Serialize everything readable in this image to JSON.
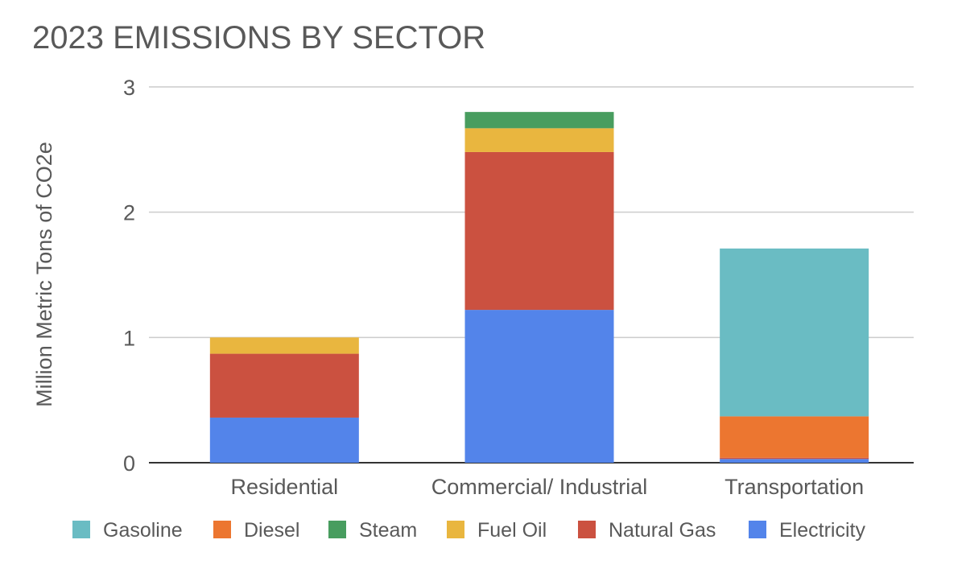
{
  "chart_data": {
    "type": "bar",
    "stacked": true,
    "title": "2023 EMISSIONS BY SECTOR",
    "xlabel": "",
    "ylabel": "Million Metric Tons of CO2e",
    "ylim": [
      0,
      3
    ],
    "yticks": [
      "0",
      "1",
      "2",
      "3"
    ],
    "grid": true,
    "legend_position": "bottom",
    "categories": [
      "Residential",
      "Commercial/ Industrial",
      "Transportation"
    ],
    "series": [
      {
        "name": "Electricity",
        "color": "#5384ea",
        "values": [
          0.36,
          1.22,
          0.03
        ]
      },
      {
        "name": "Natural Gas",
        "color": "#cb5140",
        "values": [
          0.51,
          1.26,
          0.01
        ]
      },
      {
        "name": "Fuel Oil",
        "color": "#e9b63f",
        "values": [
          0.13,
          0.19,
          0
        ]
      },
      {
        "name": "Steam",
        "color": "#489d5f",
        "values": [
          0,
          0.13,
          0
        ]
      },
      {
        "name": "Diesel",
        "color": "#ec7630",
        "values": [
          0,
          0,
          0.33
        ]
      },
      {
        "name": "Gasoline",
        "color": "#6abcc3",
        "values": [
          0,
          0,
          1.34
        ]
      }
    ],
    "legend_order": [
      "Gasoline",
      "Diesel",
      "Steam",
      "Fuel Oil",
      "Natural Gas",
      "Electricity"
    ]
  }
}
